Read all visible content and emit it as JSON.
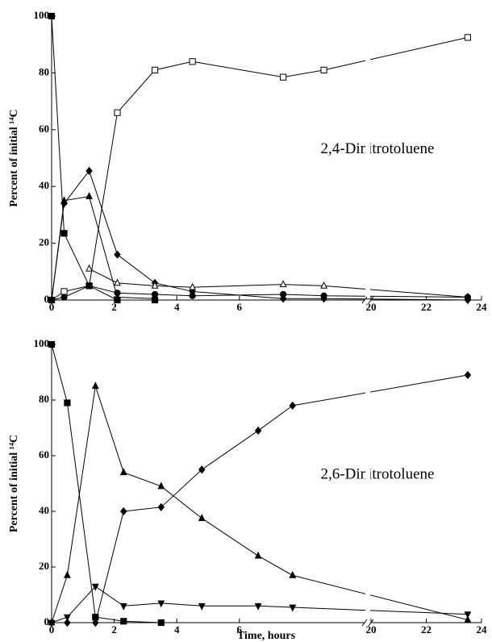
{
  "chart_data": [
    {
      "type": "line",
      "annotation": "2,4-Dinitrotoluene",
      "ylabel": "Percent of initial ¹⁴C",
      "x": [
        0,
        0.4,
        1.2,
        2.1,
        3.3,
        4.5,
        7.4,
        8.7,
        23.5
      ],
      "xlim": [
        0,
        24
      ],
      "xbreak": [
        10,
        20
      ],
      "xticks": [
        0,
        2,
        4,
        6,
        20,
        22,
        24
      ],
      "ylim": [
        0,
        100
      ],
      "yticks": [
        0,
        20,
        40,
        60,
        80,
        100
      ],
      "grid": false,
      "series": [
        {
          "marker": "square-open",
          "color": "#000000",
          "values": [
            0,
            3,
            5,
            66,
            81,
            84,
            78.5,
            81,
            92.5
          ]
        },
        {
          "marker": "diamond",
          "color": "#000000",
          "values": [
            0,
            34,
            45.5,
            16,
            6,
            3,
            0.5,
            0.5,
            0
          ]
        },
        {
          "marker": "triangle-open",
          "color": "#000000",
          "values": [
            null,
            null,
            11,
            6,
            5,
            4.5,
            5.5,
            5,
            1
          ]
        },
        {
          "marker": "circle",
          "color": "#000000",
          "values": [
            0,
            1,
            5,
            2.5,
            2,
            1.5,
            2,
            1.5,
            1
          ]
        },
        {
          "marker": "triangle",
          "color": "#000000",
          "values": [
            0,
            35,
            36.5,
            1,
            0.5,
            null,
            null,
            null,
            1
          ]
        },
        {
          "marker": "square",
          "color": "#000000",
          "values": [
            100,
            23.5,
            5,
            0,
            0,
            null,
            null,
            null,
            null
          ]
        }
      ]
    },
    {
      "type": "line",
      "annotation": "2,6-Dinitrotoluene",
      "ylabel": "Percent of initial ¹⁴C",
      "xlabel": "Time, hours",
      "x": [
        0,
        0.5,
        1.4,
        2.3,
        3.5,
        4.8,
        6.6,
        7.7,
        23.5
      ],
      "xlim": [
        0,
        24
      ],
      "xbreak": [
        10,
        20
      ],
      "xticks": [
        0,
        2,
        4,
        6,
        20,
        22,
        24
      ],
      "ylim": [
        0,
        100
      ],
      "yticks": [
        0,
        20,
        40,
        60,
        80,
        100
      ],
      "grid": false,
      "series": [
        {
          "marker": "square",
          "color": "#000000",
          "values": [
            100,
            79,
            2,
            0.5,
            0,
            null,
            null,
            null,
            null
          ]
        },
        {
          "marker": "triangle",
          "color": "#000000",
          "values": [
            0,
            17,
            85,
            54,
            49,
            37.5,
            24,
            17,
            1
          ]
        },
        {
          "marker": "diamond",
          "color": "#000000",
          "values": [
            0,
            0,
            0,
            40,
            41.5,
            55,
            69,
            78,
            89
          ]
        },
        {
          "marker": "triangle-down",
          "color": "#000000",
          "values": [
            0,
            2,
            13,
            6,
            7,
            6,
            6,
            5.5,
            3
          ]
        }
      ]
    }
  ]
}
